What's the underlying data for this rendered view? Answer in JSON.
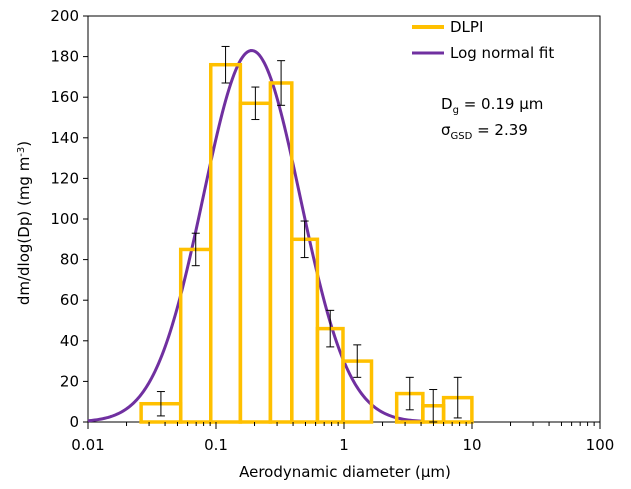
{
  "chart_data": {
    "type": "bar",
    "xscale": "log",
    "xlim": [
      0.01,
      100
    ],
    "ylim": [
      0,
      200
    ],
    "xticks": [
      0.01,
      0.1,
      1,
      10,
      100
    ],
    "xtick_labels": [
      "0.01",
      "0.1",
      "1",
      "10",
      "100"
    ],
    "yticks": [
      0,
      20,
      40,
      60,
      80,
      100,
      120,
      140,
      160,
      180,
      200
    ],
    "ytick_labels": [
      "0",
      "20",
      "40",
      "60",
      "80",
      "100",
      "120",
      "140",
      "160",
      "180",
      "200"
    ],
    "xlabel": "Aerodynamic diameter (µm)",
    "ylabel": {
      "prefix": "dm/dlog(Dp) (mg m",
      "sup": "-3",
      "suffix": ")"
    },
    "grid": false,
    "legend_position": "top-right",
    "series": [
      {
        "name": "DLPI",
        "kind": "histogram",
        "color": "#FFC000",
        "bins": [
          {
            "lo": 0.026,
            "hi": 0.053,
            "value": 9,
            "err": 6
          },
          {
            "lo": 0.053,
            "hi": 0.091,
            "value": 85,
            "err": 8
          },
          {
            "lo": 0.091,
            "hi": 0.155,
            "value": 176,
            "err": 9
          },
          {
            "lo": 0.155,
            "hi": 0.266,
            "value": 157,
            "err": 8
          },
          {
            "lo": 0.266,
            "hi": 0.391,
            "value": 167,
            "err": 11
          },
          {
            "lo": 0.391,
            "hi": 0.62,
            "value": 90,
            "err": 9
          },
          {
            "lo": 0.62,
            "hi": 0.982,
            "value": 46,
            "err": 9
          },
          {
            "lo": 0.982,
            "hi": 1.64,
            "value": 30,
            "err": 8
          },
          {
            "lo": 2.58,
            "hi": 4.13,
            "value": 14,
            "err": 8
          },
          {
            "lo": 4.13,
            "hi": 6.0,
            "value": 8,
            "err": 8
          },
          {
            "lo": 6.0,
            "hi": 9.98,
            "value": 12,
            "err": 10
          }
        ]
      },
      {
        "name": "Log normal fit",
        "kind": "line",
        "color": "#7030A0",
        "dg": 0.19,
        "gsd": 2.39,
        "peak": 183,
        "x_range": [
          0.01,
          4.2
        ]
      }
    ],
    "annotations": [
      {
        "main": "D",
        "sub": "g",
        "rest": " = 0.19 µm"
      },
      {
        "main": "σ",
        "sub": "GSD",
        "rest": " = 2.39"
      }
    ]
  }
}
